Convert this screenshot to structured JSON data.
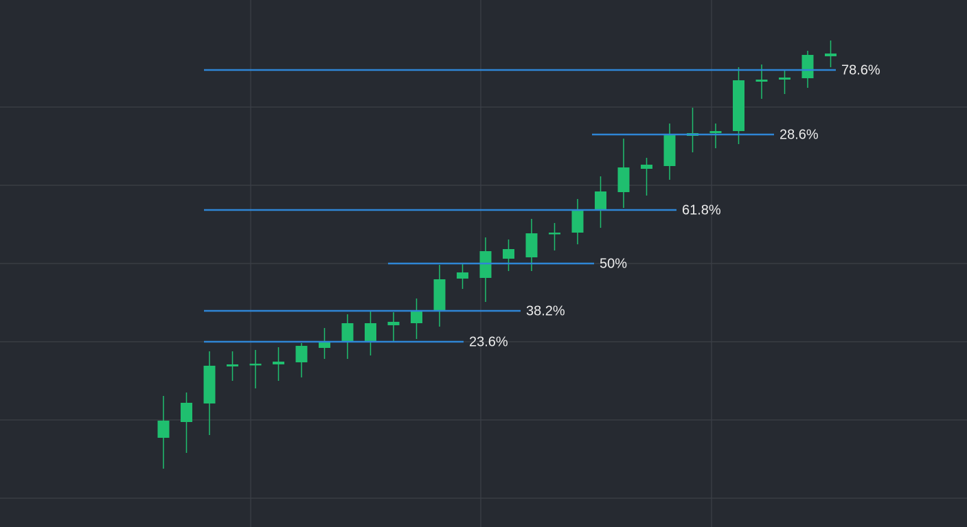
{
  "chart_data": {
    "type": "candlestick",
    "color": "#1fbf6f",
    "level_color": "#2f86d6",
    "grid": true,
    "ylim": [
      0,
      768
    ],
    "yticks": [
      42,
      156,
      270,
      384,
      498,
      612
    ],
    "categories": [
      null,
      null,
      null,
      null,
      null,
      null,
      null,
      null,
      null,
      null,
      null,
      null,
      null,
      null,
      null,
      null,
      null,
      null,
      null,
      null,
      null,
      null,
      null,
      null,
      null,
      null,
      null,
      null,
      null,
      null
    ],
    "open": [
      130,
      153,
      180,
      234,
      236,
      237,
      240,
      261,
      270,
      270,
      294,
      297,
      315,
      362,
      363,
      391,
      393,
      427,
      429,
      462,
      488,
      522,
      526,
      570,
      574,
      577,
      649,
      652,
      654,
      686
    ],
    "high": [
      191,
      196,
      256,
      256,
      258,
      262,
      268,
      290,
      310,
      314,
      313,
      333,
      382,
      383,
      422,
      419,
      449,
      443,
      478,
      511,
      566,
      538,
      588,
      611,
      588,
      670,
      674,
      665,
      694,
      709
    ],
    "low": [
      85,
      108,
      134,
      213,
      202,
      213,
      218,
      245,
      245,
      250,
      271,
      274,
      292,
      347,
      328,
      373,
      373,
      403,
      412,
      436,
      465,
      483,
      506,
      546,
      552,
      558,
      624,
      631,
      640,
      670
    ],
    "close": [
      155,
      181,
      235,
      237,
      238,
      241,
      264,
      269,
      297,
      297,
      299,
      315,
      361,
      371,
      402,
      405,
      428,
      429,
      461,
      489,
      524,
      528,
      572,
      574,
      577,
      651,
      652,
      655,
      688,
      690
    ],
    "levels": [
      {
        "label": "78.6%",
        "value": 666
      },
      {
        "label": "28.6%",
        "value": 572
      },
      {
        "label": "61.8%",
        "value": 462
      },
      {
        "label": "50%",
        "value": 384
      },
      {
        "label": "38.2%",
        "value": 315
      },
      {
        "label": "23.6%",
        "value": 270
      }
    ]
  }
}
